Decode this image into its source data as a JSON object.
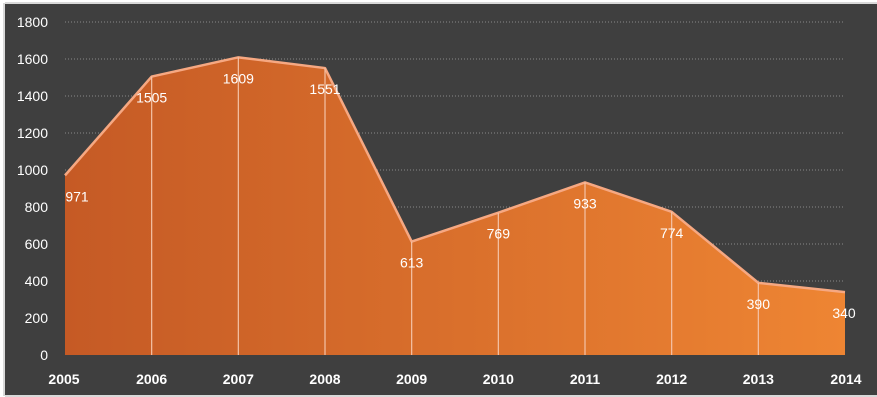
{
  "chart_data": {
    "type": "area",
    "categories": [
      "2005",
      "2006",
      "2007",
      "2008",
      "2009",
      "2010",
      "2011",
      "2012",
      "2013",
      "2014"
    ],
    "values": [
      971,
      1505,
      1609,
      1551,
      613,
      769,
      933,
      774,
      390,
      340
    ],
    "data_labels": [
      "971",
      "1505",
      "1609",
      "1551",
      "613",
      "769",
      "933",
      "774",
      "390",
      "340"
    ],
    "y_ticks": [
      0,
      200,
      400,
      600,
      800,
      1000,
      1200,
      1400,
      1600,
      1800
    ],
    "ylim": [
      0,
      1800
    ],
    "title": "",
    "xlabel": "",
    "ylabel": "",
    "grid": "horizontal-dotted",
    "legend": "none",
    "colors": {
      "background": "#3f3f3f",
      "frame": "#d9d9d9",
      "area_left": "#c55a25",
      "area_right": "#ee8533",
      "area_line": "#f6a882",
      "drop_line": "#f4c3a8",
      "gridline": "#8a8a8a",
      "axis_text": "#ffffff"
    }
  }
}
